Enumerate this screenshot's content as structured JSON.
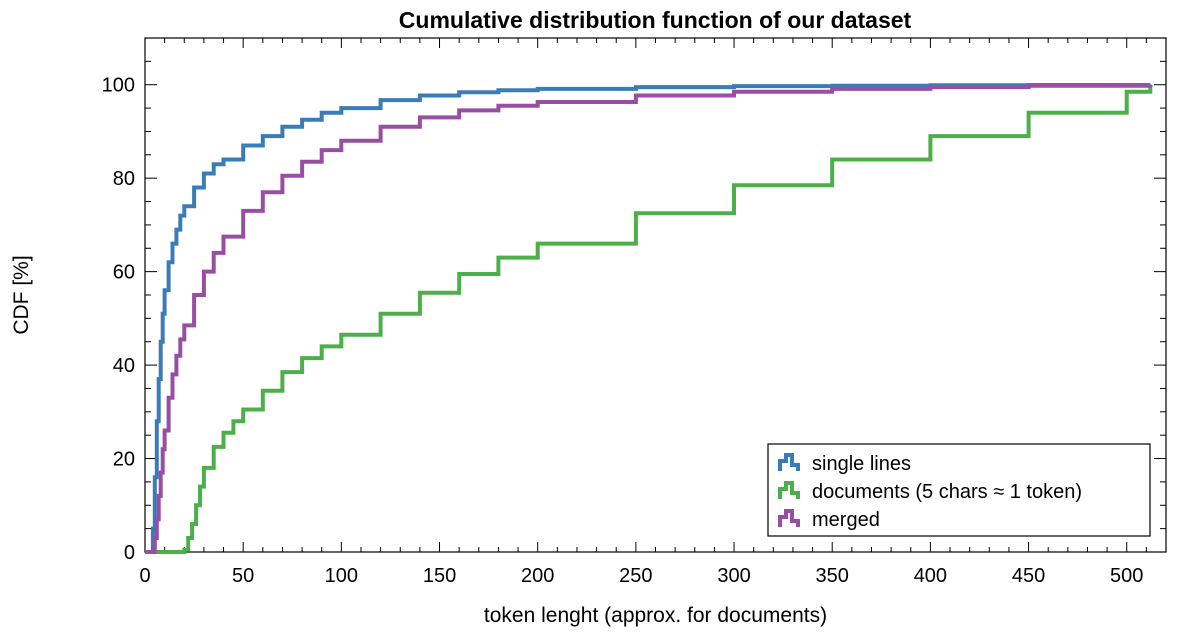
{
  "chart_data": {
    "type": "line",
    "style": "step",
    "title": "Cumulative distribution function of our dataset",
    "xlabel": "token lenght (approx. for documents)",
    "ylabel": "CDF [%]",
    "xlim": [
      0,
      520
    ],
    "ylim": [
      0,
      110
    ],
    "xticks": [
      "0",
      "50",
      "100",
      "150",
      "200",
      "250",
      "300",
      "350",
      "400",
      "450",
      "500"
    ],
    "xtick_values": [
      0,
      50,
      100,
      150,
      200,
      250,
      300,
      350,
      400,
      450,
      500
    ],
    "yticks": [
      "0",
      "20",
      "40",
      "60",
      "80",
      "100"
    ],
    "ytick_values": [
      0,
      20,
      40,
      60,
      80,
      100
    ],
    "grid": false,
    "legend_position": "bottom-right",
    "series": [
      {
        "name": "single lines",
        "color": "#3a7cb8",
        "x": [
          0,
          3,
          4,
          5,
          6,
          7,
          8,
          9,
          10,
          12,
          14,
          16,
          18,
          20,
          25,
          30,
          35,
          40,
          50,
          60,
          70,
          80,
          90,
          100,
          120,
          140,
          160,
          180,
          200,
          250,
          300,
          350,
          400,
          450,
          512
        ],
        "y": [
          0,
          0,
          5,
          16,
          28,
          37,
          45,
          51,
          56,
          62,
          66,
          69,
          72,
          74,
          78,
          81,
          83,
          84,
          87,
          89,
          91,
          92.5,
          94,
          95,
          96.7,
          97.7,
          98.4,
          98.8,
          99.1,
          99.5,
          99.7,
          99.8,
          99.9,
          99.95,
          100
        ]
      },
      {
        "name": "documents (5 chars ≈ 1 token)",
        "color": "#4daf4a",
        "x": [
          0,
          19,
          20,
          22,
          24,
          26,
          28,
          30,
          35,
          40,
          45,
          50,
          60,
          70,
          80,
          90,
          100,
          120,
          140,
          160,
          180,
          200,
          250,
          300,
          350,
          400,
          450,
          500,
          512
        ],
        "y": [
          0,
          0,
          0.5,
          3,
          6,
          10,
          14,
          18,
          22.5,
          25.5,
          28,
          30.5,
          34.5,
          38.5,
          41.5,
          44,
          46.5,
          51,
          55.5,
          59.5,
          63,
          66,
          72.5,
          78.5,
          84,
          89,
          94,
          98.5,
          99.5
        ]
      },
      {
        "name": "merged",
        "color": "#984ea3",
        "x": [
          0,
          4,
          5,
          6,
          7,
          8,
          9,
          10,
          12,
          14,
          16,
          18,
          20,
          25,
          30,
          35,
          40,
          50,
          60,
          70,
          80,
          90,
          100,
          120,
          140,
          160,
          180,
          200,
          250,
          300,
          350,
          400,
          450,
          512
        ],
        "y": [
          0,
          0,
          3,
          7,
          12,
          17,
          22,
          26,
          33,
          38,
          42,
          45.5,
          48.5,
          55,
          60,
          64,
          67.5,
          73,
          77,
          80.5,
          83.5,
          86,
          88,
          91,
          93,
          94.5,
          95.5,
          96.3,
          97.7,
          98.5,
          99.1,
          99.5,
          99.8,
          100
        ]
      }
    ]
  }
}
